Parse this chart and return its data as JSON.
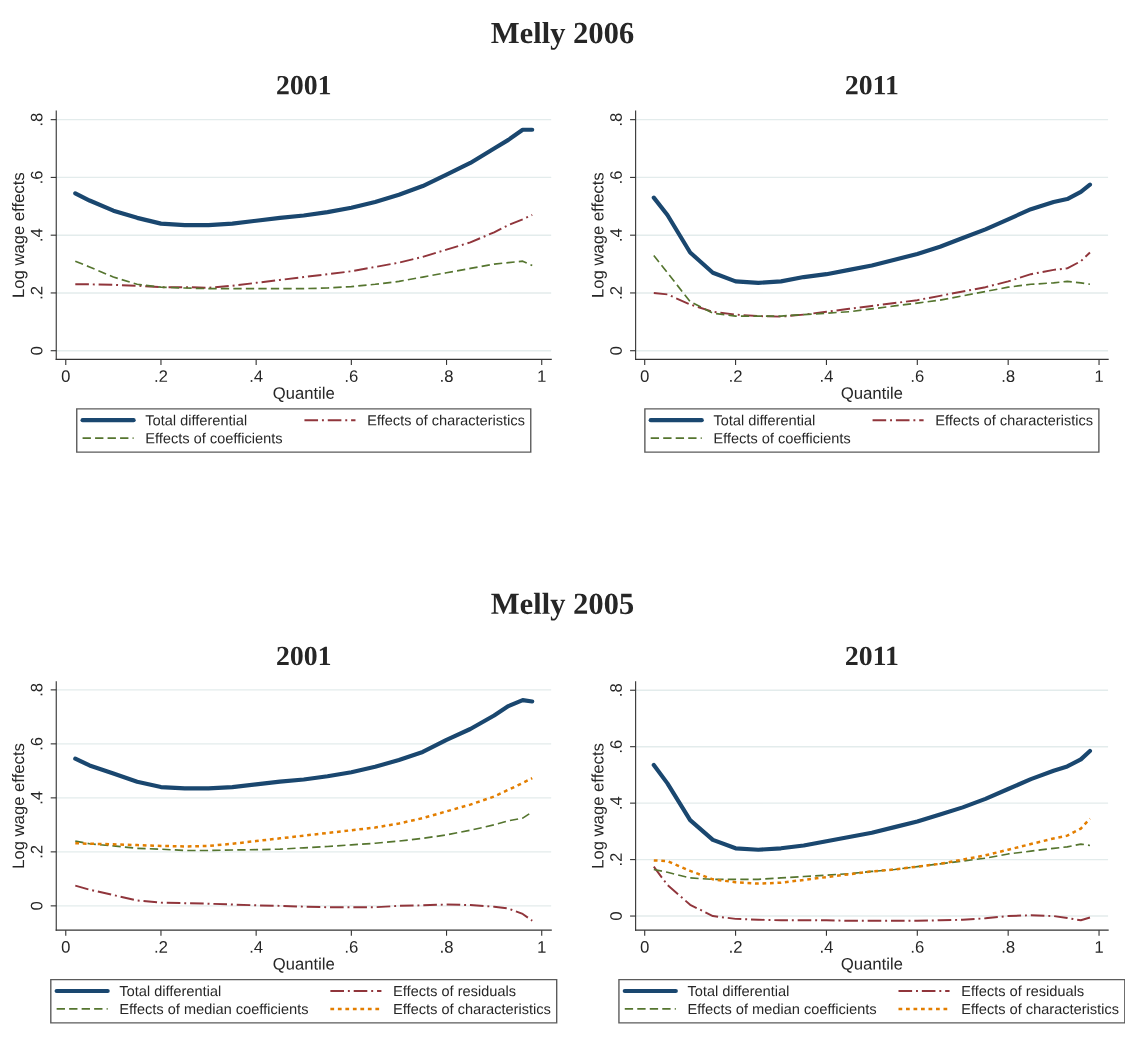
{
  "chart_data": [
    {
      "type": "line",
      "title": "2001",
      "annotations": [
        "Melly 2006"
      ],
      "xlabel": "Quantile",
      "ylabel": "Log wage effects",
      "x": [
        0.02,
        0.05,
        0.1,
        0.15,
        0.2,
        0.25,
        0.3,
        0.35,
        0.4,
        0.45,
        0.5,
        0.55,
        0.6,
        0.65,
        0.7,
        0.75,
        0.8,
        0.85,
        0.9,
        0.93,
        0.96,
        0.98
      ],
      "series": [
        {
          "name": "Total differential",
          "color": "#1a476f",
          "line_style": "solid",
          "values": [
            0.545,
            0.52,
            0.485,
            0.46,
            0.44,
            0.435,
            0.435,
            0.44,
            0.45,
            0.46,
            0.468,
            0.48,
            0.495,
            0.515,
            0.54,
            0.57,
            0.61,
            0.65,
            0.7,
            0.73,
            0.765,
            0.765
          ]
        },
        {
          "name": "Effects of characteristics",
          "color": "#90353b",
          "line_style": "dashdot",
          "values": [
            0.23,
            0.23,
            0.228,
            0.225,
            0.22,
            0.22,
            0.218,
            0.225,
            0.235,
            0.245,
            0.255,
            0.265,
            0.275,
            0.29,
            0.305,
            0.325,
            0.35,
            0.375,
            0.41,
            0.435,
            0.455,
            0.47
          ]
        },
        {
          "name": "Effects of coefficients",
          "color": "#55752f",
          "line_style": "dashed",
          "values": [
            0.31,
            0.29,
            0.255,
            0.23,
            0.22,
            0.217,
            0.215,
            0.215,
            0.215,
            0.215,
            0.215,
            0.217,
            0.222,
            0.23,
            0.24,
            0.255,
            0.27,
            0.285,
            0.3,
            0.305,
            0.31,
            0.295
          ]
        }
      ],
      "xlim": [
        -0.02,
        1.02
      ],
      "xticks": [
        0,
        {
          "value": 0.2,
          "label": ".2"
        },
        {
          "value": 0.4,
          "label": ".4"
        },
        {
          "value": 0.6,
          "label": ".6"
        },
        {
          "value": 0.8,
          "label": ".8"
        },
        1
      ],
      "ylim": [
        -0.03,
        0.83
      ],
      "yticks": [
        0,
        {
          "value": 0.2,
          "label": ".2"
        },
        {
          "value": 0.4,
          "label": ".4"
        },
        {
          "value": 0.6,
          "label": ".6"
        },
        {
          "value": 0.8,
          "label": ".8"
        }
      ],
      "grid": "y",
      "legend": "bottom"
    },
    {
      "type": "line",
      "title": "2011",
      "xlabel": "Quantile",
      "ylabel": "Log wage effects",
      "x": [
        0.02,
        0.05,
        0.1,
        0.15,
        0.2,
        0.25,
        0.3,
        0.35,
        0.4,
        0.45,
        0.5,
        0.55,
        0.6,
        0.65,
        0.7,
        0.75,
        0.8,
        0.85,
        0.9,
        0.93,
        0.96,
        0.98
      ],
      "series": [
        {
          "name": "Total differential",
          "color": "#1a476f",
          "line_style": "solid",
          "values": [
            0.53,
            0.47,
            0.34,
            0.27,
            0.24,
            0.235,
            0.24,
            0.255,
            0.265,
            0.28,
            0.295,
            0.315,
            0.335,
            0.36,
            0.39,
            0.42,
            0.455,
            0.49,
            0.515,
            0.525,
            0.55,
            0.575
          ]
        },
        {
          "name": "Effects of characteristics",
          "color": "#90353b",
          "line_style": "dashdot",
          "values": [
            0.2,
            0.195,
            0.16,
            0.135,
            0.125,
            0.12,
            0.118,
            0.125,
            0.135,
            0.145,
            0.155,
            0.165,
            0.175,
            0.19,
            0.205,
            0.22,
            0.24,
            0.265,
            0.28,
            0.285,
            0.31,
            0.34
          ]
        },
        {
          "name": "Effects of coefficients",
          "color": "#55752f",
          "line_style": "dashed",
          "values": [
            0.33,
            0.27,
            0.17,
            0.13,
            0.12,
            0.12,
            0.12,
            0.125,
            0.13,
            0.135,
            0.145,
            0.155,
            0.165,
            0.175,
            0.19,
            0.205,
            0.22,
            0.23,
            0.235,
            0.24,
            0.235,
            0.23
          ]
        }
      ],
      "xlim": [
        -0.02,
        1.02
      ],
      "xticks": [
        0,
        {
          "value": 0.2,
          "label": ".2"
        },
        {
          "value": 0.4,
          "label": ".4"
        },
        {
          "value": 0.6,
          "label": ".6"
        },
        {
          "value": 0.8,
          "label": ".8"
        },
        1
      ],
      "ylim": [
        -0.03,
        0.83
      ],
      "yticks": [
        0,
        {
          "value": 0.2,
          "label": ".2"
        },
        {
          "value": 0.4,
          "label": ".4"
        },
        {
          "value": 0.6,
          "label": ".6"
        },
        {
          "value": 0.8,
          "label": ".8"
        }
      ],
      "grid": "y",
      "legend": "bottom"
    },
    {
      "type": "line",
      "title": "2001",
      "annotations": [
        "Melly 2005"
      ],
      "xlabel": "Quantile",
      "ylabel": "Log wage effects",
      "x": [
        0.02,
        0.05,
        0.1,
        0.15,
        0.2,
        0.25,
        0.3,
        0.35,
        0.4,
        0.45,
        0.5,
        0.55,
        0.6,
        0.65,
        0.7,
        0.75,
        0.8,
        0.85,
        0.9,
        0.93,
        0.96,
        0.98
      ],
      "series": [
        {
          "name": "Total differential",
          "color": "#1a476f",
          "line_style": "solid",
          "values": [
            0.545,
            0.52,
            0.49,
            0.46,
            0.44,
            0.435,
            0.435,
            0.44,
            0.45,
            0.46,
            0.468,
            0.48,
            0.495,
            0.515,
            0.54,
            0.57,
            0.615,
            0.655,
            0.705,
            0.74,
            0.762,
            0.757
          ]
        },
        {
          "name": "Effects of residuals",
          "color": "#90353b",
          "line_style": "dashdot",
          "values": [
            0.075,
            0.06,
            0.04,
            0.02,
            0.012,
            0.01,
            0.008,
            0.005,
            0.002,
            0,
            -0.003,
            -0.005,
            -0.005,
            -0.005,
            0,
            0.002,
            0.005,
            0.003,
            -0.003,
            -0.01,
            -0.03,
            -0.055
          ]
        },
        {
          "name": "Effects of median coefficients",
          "color": "#55752f",
          "line_style": "dashed",
          "values": [
            0.24,
            0.23,
            0.222,
            0.213,
            0.21,
            0.205,
            0.205,
            0.207,
            0.208,
            0.21,
            0.215,
            0.22,
            0.226,
            0.232,
            0.24,
            0.25,
            0.263,
            0.28,
            0.3,
            0.315,
            0.325,
            0.348
          ]
        },
        {
          "name": "Effects of characteristics",
          "color": "#e37e00",
          "line_style": "dotted",
          "values": [
            0.232,
            0.23,
            0.228,
            0.225,
            0.222,
            0.22,
            0.222,
            0.23,
            0.24,
            0.25,
            0.26,
            0.27,
            0.28,
            0.29,
            0.305,
            0.325,
            0.35,
            0.375,
            0.405,
            0.43,
            0.455,
            0.473
          ]
        }
      ],
      "xlim": [
        -0.02,
        1.02
      ],
      "xticks": [
        0,
        {
          "value": 0.2,
          "label": ".2"
        },
        {
          "value": 0.4,
          "label": ".4"
        },
        {
          "value": 0.6,
          "label": ".6"
        },
        {
          "value": 0.8,
          "label": ".8"
        },
        1
      ],
      "ylim": [
        -0.09,
        0.83
      ],
      "yticks": [
        0,
        {
          "value": 0.2,
          "label": ".2"
        },
        {
          "value": 0.4,
          "label": ".4"
        },
        {
          "value": 0.6,
          "label": ".6"
        },
        {
          "value": 0.8,
          "label": ".8"
        }
      ],
      "grid": "y",
      "legend": "bottom"
    },
    {
      "type": "line",
      "title": "2011",
      "xlabel": "Quantile",
      "ylabel": "Log wage effects",
      "x": [
        0.02,
        0.05,
        0.1,
        0.15,
        0.2,
        0.25,
        0.3,
        0.35,
        0.4,
        0.45,
        0.5,
        0.55,
        0.6,
        0.65,
        0.7,
        0.75,
        0.8,
        0.85,
        0.9,
        0.93,
        0.96,
        0.98
      ],
      "series": [
        {
          "name": "Total differential",
          "color": "#1a476f",
          "line_style": "solid",
          "values": [
            0.535,
            0.47,
            0.34,
            0.27,
            0.24,
            0.235,
            0.24,
            0.25,
            0.265,
            0.28,
            0.295,
            0.315,
            0.335,
            0.36,
            0.385,
            0.415,
            0.45,
            0.485,
            0.515,
            0.53,
            0.555,
            0.585
          ]
        },
        {
          "name": "Effects of residuals",
          "color": "#90353b",
          "line_style": "dashdot",
          "values": [
            0.175,
            0.11,
            0.04,
            0,
            -0.01,
            -0.013,
            -0.015,
            -0.015,
            -0.015,
            -0.017,
            -0.017,
            -0.017,
            -0.017,
            -0.015,
            -0.013,
            -0.008,
            0,
            0.003,
            0,
            -0.007,
            -0.015,
            -0.005
          ]
        },
        {
          "name": "Effects of median coefficients",
          "color": "#55752f",
          "line_style": "dashed",
          "values": [
            0.165,
            0.155,
            0.135,
            0.13,
            0.13,
            0.13,
            0.135,
            0.14,
            0.145,
            0.15,
            0.158,
            0.165,
            0.175,
            0.185,
            0.195,
            0.205,
            0.22,
            0.23,
            0.24,
            0.245,
            0.255,
            0.25
          ]
        },
        {
          "name": "Effects of characteristics",
          "color": "#e37e00",
          "line_style": "dotted",
          "values": [
            0.197,
            0.195,
            0.16,
            0.13,
            0.12,
            0.115,
            0.118,
            0.128,
            0.138,
            0.148,
            0.158,
            0.165,
            0.175,
            0.185,
            0.2,
            0.215,
            0.235,
            0.255,
            0.275,
            0.285,
            0.31,
            0.345
          ]
        }
      ],
      "xlim": [
        -0.02,
        1.02
      ],
      "xticks": [
        0,
        {
          "value": 0.2,
          "label": ".2"
        },
        {
          "value": 0.4,
          "label": ".4"
        },
        {
          "value": 0.6,
          "label": ".6"
        },
        {
          "value": 0.8,
          "label": ".8"
        },
        1
      ],
      "ylim": [
        -0.05,
        0.83
      ],
      "yticks": [
        0,
        {
          "value": 0.2,
          "label": ".2"
        },
        {
          "value": 0.4,
          "label": ".4"
        },
        {
          "value": 0.6,
          "label": ".6"
        },
        {
          "value": 0.8,
          "label": ".8"
        }
      ],
      "grid": "y",
      "legend": "bottom"
    }
  ]
}
